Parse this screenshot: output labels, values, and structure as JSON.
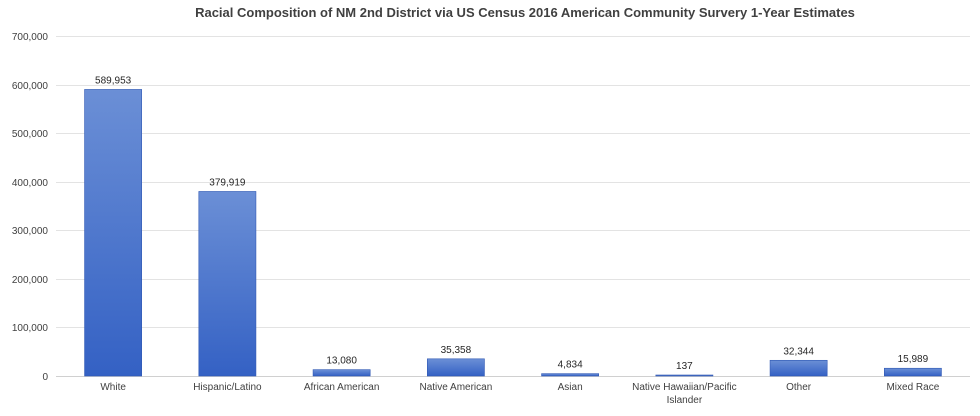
{
  "chart_data": {
    "type": "bar",
    "title": "Racial Composition of NM 2nd District via US Census 2016 American Community Survery 1-Year Estimates",
    "xlabel": "",
    "ylabel": "",
    "ylim": [
      0,
      700000
    ],
    "yticks": [
      0,
      100000,
      200000,
      300000,
      400000,
      500000,
      600000,
      700000
    ],
    "ytick_labels": [
      "0",
      "100,000",
      "200,000",
      "300,000",
      "400,000",
      "500,000",
      "600,000",
      "700,000"
    ],
    "categories": [
      "White",
      "Hispanic/Latino",
      "African American",
      "Native American",
      "Asian",
      "Native Hawaiian/Pacific Islander",
      "Other",
      "Mixed Race"
    ],
    "category_lines": [
      [
        "White"
      ],
      [
        "Hispanic/Latino"
      ],
      [
        "African American"
      ],
      [
        "Native American"
      ],
      [
        "Asian"
      ],
      [
        "Native Hawaiian/Pacific",
        "Islander"
      ],
      [
        "Other"
      ],
      [
        "Mixed Race"
      ]
    ],
    "values": [
      589953,
      379919,
      13080,
      35358,
      4834,
      137,
      32344,
      15989
    ],
    "data_labels": [
      "589,953",
      "379,919",
      "13,080",
      "35,358",
      "4,834",
      "137",
      "32,344",
      "15,989"
    ],
    "grid": true,
    "legend": "none",
    "colors": {
      "bar_top": "#6b8fd6",
      "bar_bottom": "#3461c4",
      "bar_edge": "#2f58b3"
    }
  }
}
